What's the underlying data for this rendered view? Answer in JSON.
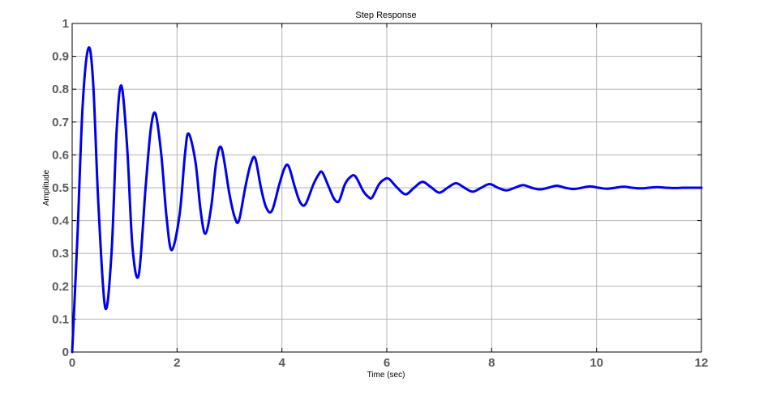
{
  "chart_data": {
    "type": "line",
    "title": "Step Response",
    "xlabel": "Time (sec)",
    "ylabel": "Amplitude",
    "xlim": [
      0,
      12
    ],
    "ylim": [
      0,
      1
    ],
    "xticks": [
      "0",
      "2",
      "4",
      "6",
      "8",
      "10",
      "12"
    ],
    "yticks": [
      "0",
      "0.1",
      "0.2",
      "0.3",
      "0.4",
      "0.5",
      "0.6",
      "0.7",
      "0.8",
      "0.9",
      "1"
    ],
    "grid": true,
    "series": [
      {
        "color": "#0000ee",
        "x": [
          0,
          0.1,
          0.2,
          0.31,
          0.4,
          0.5,
          0.63,
          0.75,
          0.85,
          0.94,
          1.05,
          1.15,
          1.27,
          1.4,
          1.5,
          1.59,
          1.7,
          1.8,
          1.9,
          2.05,
          2.15,
          2.22,
          2.35,
          2.45,
          2.54,
          2.65,
          2.75,
          2.85,
          3.0,
          3.1,
          3.18,
          3.3,
          3.4,
          3.49,
          3.6,
          3.7,
          3.81,
          3.95,
          4.05,
          4.13,
          4.25,
          4.35,
          4.45,
          4.6,
          4.7,
          4.77,
          4.9,
          5.0,
          5.09,
          5.2,
          5.3,
          5.4,
          5.55,
          5.65,
          5.72,
          5.85,
          5.95,
          6.04,
          6.2,
          6.36,
          6.52,
          6.68,
          6.84,
          7.0,
          7.16,
          7.32,
          7.48,
          7.64,
          7.8,
          7.96,
          8.12,
          8.28,
          8.44,
          8.6,
          8.76,
          8.92,
          9.08,
          9.24,
          9.4,
          9.56,
          9.72,
          9.88,
          10.04,
          10.2,
          10.36,
          10.52,
          10.68,
          10.84,
          11.0,
          11.16,
          11.32,
          11.48,
          11.64,
          11.8,
          12.0
        ],
        "y": [
          0,
          0.35,
          0.75,
          0.925,
          0.82,
          0.45,
          0.135,
          0.3,
          0.68,
          0.81,
          0.62,
          0.32,
          0.235,
          0.5,
          0.68,
          0.725,
          0.6,
          0.41,
          0.31,
          0.42,
          0.6,
          0.665,
          0.58,
          0.43,
          0.36,
          0.44,
          0.58,
          0.62,
          0.48,
          0.41,
          0.4,
          0.5,
          0.57,
          0.59,
          0.5,
          0.44,
          0.43,
          0.51,
          0.56,
          0.565,
          0.5,
          0.455,
          0.45,
          0.51,
          0.54,
          0.547,
          0.5,
          0.465,
          0.46,
          0.51,
          0.532,
          0.535,
          0.49,
          0.472,
          0.47,
          0.51,
          0.525,
          0.527,
          0.5,
          0.48,
          0.5,
          0.518,
          0.502,
          0.485,
          0.5,
          0.514,
          0.5,
          0.488,
          0.5,
          0.511,
          0.5,
          0.492,
          0.5,
          0.508,
          0.5,
          0.495,
          0.5,
          0.506,
          0.5,
          0.496,
          0.5,
          0.504,
          0.5,
          0.497,
          0.5,
          0.503,
          0.5,
          0.498,
          0.5,
          0.502,
          0.5,
          0.499,
          0.5,
          0.5,
          0.5
        ]
      }
    ]
  }
}
